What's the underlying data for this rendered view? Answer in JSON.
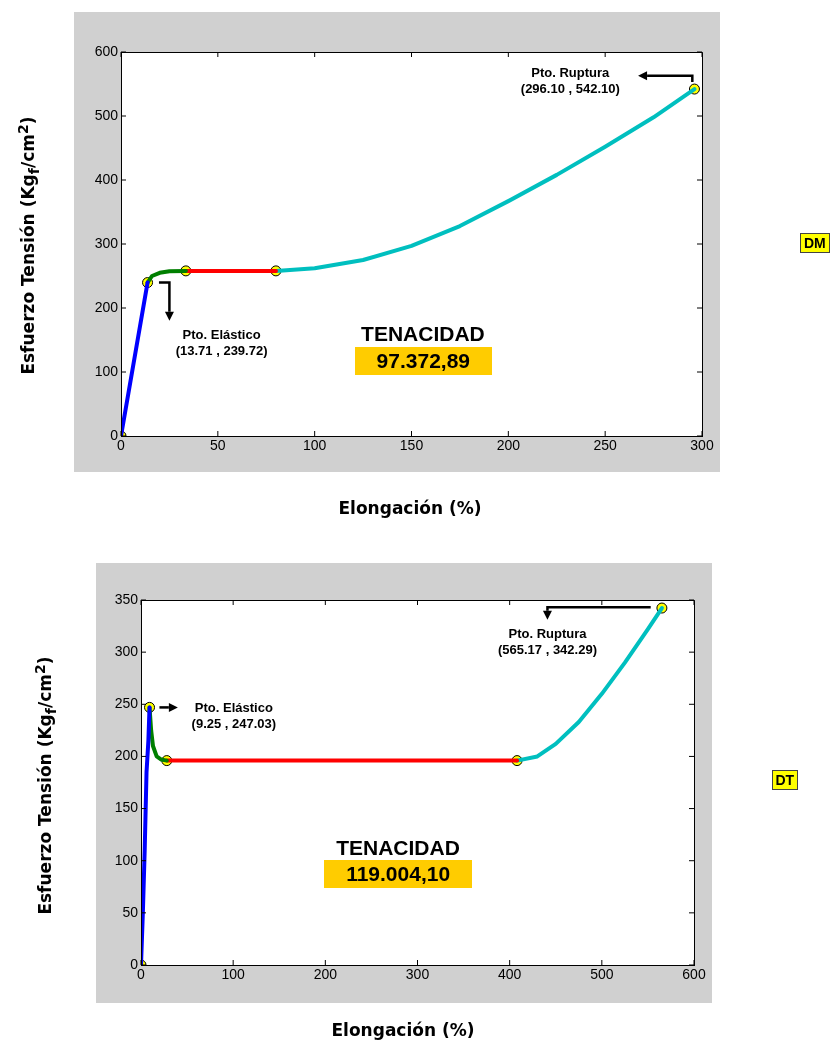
{
  "chart_data": [
    {
      "type": "line",
      "xlabel": "Elongación (%)",
      "ylabel": "Esfuerzo Tensión (Kg$_{f}$/cm$^{2}$)",
      "xlim": [
        0,
        300
      ],
      "xticks": [
        0,
        50,
        100,
        150,
        200,
        250,
        300
      ],
      "ylim": [
        0,
        600
      ],
      "yticks": [
        0,
        100,
        200,
        300,
        400,
        500,
        600
      ],
      "grid": false,
      "legend": false,
      "series": [
        {
          "color": "#0000ff",
          "x": [
            0,
            13.71
          ],
          "values": [
            0,
            239.72
          ]
        },
        {
          "color": "#007f00",
          "x": [
            13.71,
            16,
            20,
            25,
            33.5
          ],
          "values": [
            239.72,
            250,
            255,
            257.5,
            258
          ]
        },
        {
          "color": "#ff0000",
          "x": [
            33.5,
            80
          ],
          "values": [
            258,
            258
          ]
        },
        {
          "color": "#00bfbf",
          "x": [
            80,
            100,
            125,
            150,
            175,
            200,
            225,
            250,
            275,
            296.1
          ],
          "values": [
            258,
            262,
            275,
            297,
            328,
            367,
            408,
            452,
            498,
            542.1
          ]
        },
        {
          "type": "scatter",
          "marker": "circle",
          "color": "#ffff00",
          "x": [
            0,
            13.71,
            33.5,
            80,
            296.1
          ],
          "values": [
            0,
            239.72,
            258,
            258,
            542.1
          ]
        }
      ],
      "annotations": [
        "Pto. Elástico\n(13.71 , 239.72)",
        "Pto. Ruptura\n(296.10 , 542.10)",
        "TENACIDAD",
        "97.372,89",
        "DM"
      ]
    },
    {
      "type": "line",
      "xlabel": "Elongación (%)",
      "ylabel": "Esfuerzo Tensión (Kg$_{f}$/cm$^{2}$)",
      "xlim": [
        0,
        600
      ],
      "xticks": [
        0,
        100,
        200,
        300,
        400,
        500,
        600
      ],
      "ylim": [
        0,
        350
      ],
      "yticks": [
        0,
        50,
        100,
        150,
        200,
        250,
        300,
        350
      ],
      "grid": false,
      "legend": false,
      "series": [
        {
          "color": "#0000ff",
          "x": [
            0,
            2,
            4,
            6,
            8,
            9.25
          ],
          "values": [
            0,
            50,
            110,
            185,
            215,
            247.03
          ]
        },
        {
          "color": "#007f00",
          "x": [
            9.25,
            11,
            13,
            17,
            22,
            28
          ],
          "values": [
            247.03,
            225,
            210,
            200,
            197,
            196
          ]
        },
        {
          "color": "#ff0000",
          "x": [
            28,
            408
          ],
          "values": [
            196,
            196
          ]
        },
        {
          "color": "#00bfbf",
          "x": [
            408,
            430,
            450,
            475,
            500,
            525,
            550,
            565.17
          ],
          "values": [
            196,
            200,
            212,
            233,
            260,
            290,
            322,
            342.29
          ]
        },
        {
          "type": "scatter",
          "marker": "circle",
          "color": "#ffff00",
          "x": [
            0,
            9.25,
            28,
            408,
            565.17
          ],
          "values": [
            0,
            247.03,
            196,
            196,
            342.29
          ]
        }
      ],
      "annotations": [
        "Pto. Elástico\n(9.25 , 247.03)",
        "Pto. Ruptura\n(565.17 , 342.29)",
        "TENACIDAD",
        "119.004,10",
        "DT"
      ]
    }
  ]
}
